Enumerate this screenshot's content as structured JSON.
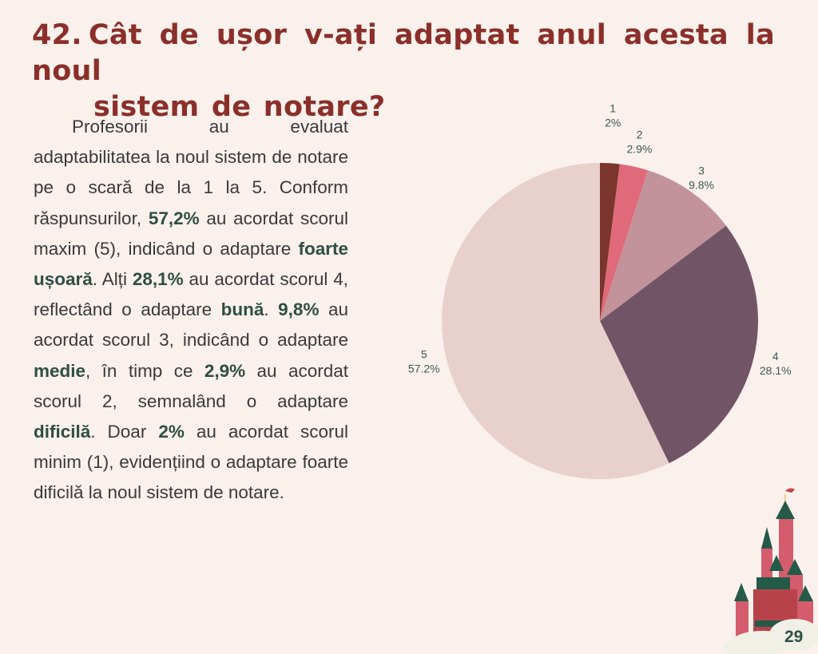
{
  "title": {
    "number": "42.",
    "line1": "Cât de ușor v-ați adaptat anul acesta la noul",
    "line2": "sistem de notare?"
  },
  "paragraph": [
    {
      "t": "Profesorii au evaluat adaptabilitatea la noul sistem de notare pe o scară de la 1 la 5. Conform răspunsurilor, ",
      "b": false
    },
    {
      "t": "57,2%",
      "b": true
    },
    {
      "t": " au acordat scorul maxim (5), indicând o adaptare ",
      "b": false
    },
    {
      "t": "foarte ușoară",
      "b": true
    },
    {
      "t": ". Alți ",
      "b": false
    },
    {
      "t": "28,1%",
      "b": true
    },
    {
      "t": " au acordat scorul 4, reflectând o adaptare ",
      "b": false
    },
    {
      "t": "bună",
      "b": true
    },
    {
      "t": ". ",
      "b": false
    },
    {
      "t": "9,8%",
      "b": true
    },
    {
      "t": " au acordat scorul 3, indicând o adaptare ",
      "b": false
    },
    {
      "t": "medie",
      "b": true
    },
    {
      "t": ", în timp ce ",
      "b": false
    },
    {
      "t": "2,9%",
      "b": true
    },
    {
      "t": " au acordat scorul 2, semnalând o adaptare ",
      "b": false
    },
    {
      "t": "dificilă",
      "b": true
    },
    {
      "t": ". Doar ",
      "b": false
    },
    {
      "t": "2%",
      "b": true
    },
    {
      "t": " au acordat scorul minim (1), evidențiind o adaptare foarte dificilă la noul sistem de notare.",
      "b": false
    }
  ],
  "page_number": "29",
  "chart_data": {
    "type": "pie",
    "title": "",
    "categories": [
      "1",
      "2",
      "3",
      "4",
      "5"
    ],
    "values": [
      2,
      2.9,
      9.8,
      28.1,
      57.2
    ],
    "labels": [
      "2%",
      "2.9%",
      "9.8%",
      "28.1%",
      "57.2%"
    ],
    "colors": [
      "#7a352c",
      "#e06a7a",
      "#c2939b",
      "#725467",
      "#e8d0cd"
    ],
    "start": "top",
    "direction": "clockwise"
  }
}
